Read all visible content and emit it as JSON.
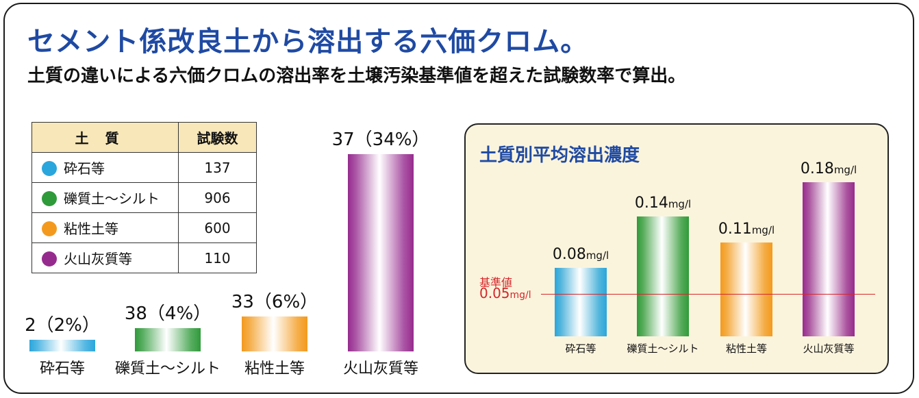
{
  "header": {
    "title": "セメント係改良土から溶出する六価クロム。",
    "subtitle": "土質の違いによる六価クロムの溶出率を土壌汚染基準値を超えた試験数率で算出。"
  },
  "colors": {
    "gravel": "#2aa6dc",
    "silt": "#2f9a3a",
    "clay": "#f39a1e",
    "volcanic": "#962b8e"
  },
  "table": {
    "col_soil": "土質",
    "col_tests": "試験数",
    "rows": [
      {
        "key": "gravel",
        "name": "砕石等",
        "count": "137"
      },
      {
        "key": "silt",
        "name": "礫質土～シルト",
        "count": "906"
      },
      {
        "key": "clay",
        "name": "粘性土等",
        "count": "600"
      },
      {
        "key": "volcanic",
        "name": "火山灰質等",
        "count": "110"
      }
    ]
  },
  "chart_data": [
    {
      "type": "bar",
      "categories": [
        "砕石等",
        "礫質土～シルト",
        "粘性土等",
        "火山灰質等"
      ],
      "values": [
        2,
        38,
        33,
        37
      ],
      "percent": [
        2,
        4,
        6,
        34
      ],
      "labels": [
        "2（2%）",
        "38（4%）",
        "33（6%）",
        "37（34%）"
      ]
    },
    {
      "type": "bar",
      "title": "土質別平均溶出濃度",
      "categories": [
        "砕石等",
        "礫質土～シルト",
        "粘性土等",
        "火山灰質等"
      ],
      "values": [
        0.08,
        0.14,
        0.11,
        0.18
      ],
      "value_labels": [
        "0.08",
        "0.14",
        "0.11",
        "0.18"
      ],
      "unit": "mg/l",
      "reference": {
        "name": "基準値",
        "value": 0.05,
        "label": "0.05"
      }
    }
  ]
}
